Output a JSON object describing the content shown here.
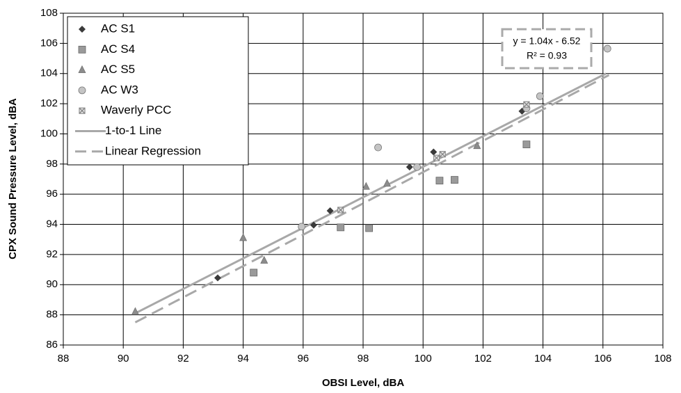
{
  "chart_data": {
    "type": "scatter",
    "x_label": "OBSI Level, dBA",
    "y_label": "CPX Sound Pressure Level, dBA",
    "xlim": [
      88,
      108
    ],
    "xticks": [
      88,
      90,
      92,
      94,
      96,
      98,
      100,
      102,
      104,
      106,
      108
    ],
    "ylim": [
      86,
      108
    ],
    "yticks": [
      86,
      88,
      90,
      92,
      94,
      96,
      98,
      100,
      102,
      104,
      106,
      108
    ],
    "grid": true,
    "legend": "upper left",
    "annotation": [
      "y = 1.04x - 6.52",
      "R² = 0.93"
    ],
    "series": [
      {
        "name": "AC S1",
        "color": "#3a3a3a",
        "marker": "diamond",
        "x": [
          93.15,
          96.35,
          96.9,
          99.55,
          100.35,
          103.3
        ],
        "values": [
          90.45,
          93.95,
          94.9,
          97.8,
          98.8,
          101.5
        ]
      },
      {
        "name": "AC S4",
        "color": "#9a9a9a",
        "marker": "square",
        "x": [
          94.35,
          97.25,
          98.2,
          100.55,
          101.05,
          103.45
        ],
        "values": [
          90.8,
          93.8,
          93.75,
          96.9,
          96.95,
          99.3
        ]
      },
      {
        "name": "AC S5",
        "color": "#8c8c8c",
        "marker": "triangle",
        "x": [
          90.4,
          94.0,
          94.7,
          98.1,
          98.8,
          101.8
        ],
        "values": [
          88.2,
          93.1,
          91.6,
          96.5,
          96.7,
          99.2
        ]
      },
      {
        "name": "AC W3",
        "color": "#c4c4c4",
        "marker": "circle",
        "x": [
          95.95,
          98.5,
          99.8,
          103.45,
          103.9,
          106.15
        ],
        "values": [
          93.85,
          99.1,
          97.8,
          101.7,
          102.5,
          105.65
        ]
      },
      {
        "name": "Waverly PCC",
        "color": "#8a8a8a",
        "marker": "xsquare",
        "x": [
          97.25,
          100.45,
          100.65,
          103.45
        ],
        "values": [
          94.95,
          98.4,
          98.65,
          101.95
        ]
      },
      {
        "name": "1-to-1 Line",
        "color": "#a8a8a8",
        "marker": "solid",
        "x": [
          90.4,
          106.1
        ],
        "values": [
          88.1,
          104.0
        ]
      },
      {
        "name": "Linear Regression",
        "color": "#a8a8a8",
        "marker": "dashed",
        "x": [
          90.4,
          106.2
        ],
        "values": [
          87.5,
          103.9
        ]
      }
    ]
  }
}
